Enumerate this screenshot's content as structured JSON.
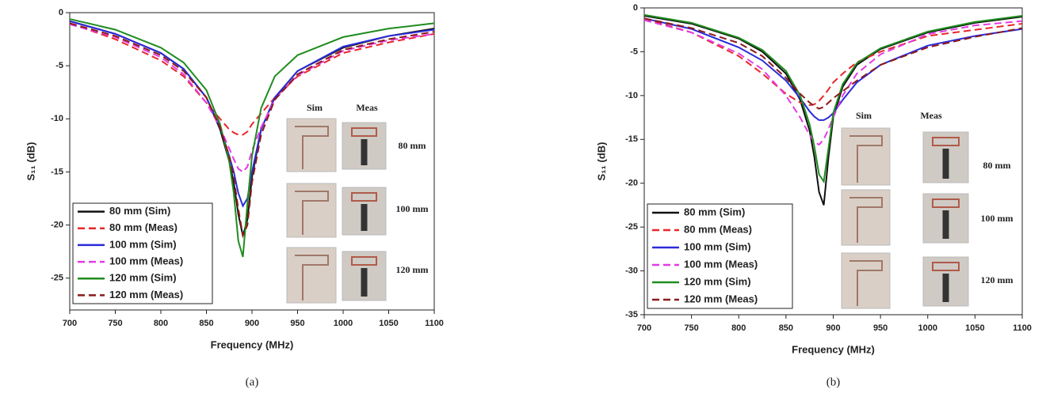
{
  "chart_data": [
    {
      "type": "line",
      "caption": "(a)",
      "xlabel": "Frequency (MHz)",
      "ylabel": "S₁₁ (dB)",
      "xlim": [
        700,
        1100
      ],
      "xticks": [
        700,
        750,
        800,
        850,
        900,
        950,
        1000,
        1050,
        1100
      ],
      "ylim": [
        -28,
        0
      ],
      "yticks": [
        0,
        -5,
        -10,
        -15,
        -20,
        -25
      ],
      "legend": "lower left",
      "x": [
        700,
        750,
        800,
        825,
        850,
        865,
        875,
        880,
        885,
        890,
        895,
        900,
        910,
        925,
        950,
        1000,
        1050,
        1100
      ],
      "series": [
        {
          "name": "80 mm (Sim)",
          "color": "#111111",
          "dash": false,
          "values": [
            -0.8,
            -2,
            -3.8,
            -5.3,
            -8,
            -11,
            -14,
            -16,
            -19,
            -21,
            -19.5,
            -15.5,
            -11,
            -8,
            -5.5,
            -3.3,
            -2.2,
            -1.5
          ]
        },
        {
          "name": "80 mm (Meas)",
          "color": "#e8262a",
          "dash": true,
          "values": [
            -1,
            -2.5,
            -4.5,
            -6,
            -8.5,
            -10,
            -11,
            -11.3,
            -11.5,
            -11.5,
            -11.2,
            -10.5,
            -9.5,
            -8,
            -6,
            -3.8,
            -2.8,
            -2
          ]
        },
        {
          "name": "100 mm (Sim)",
          "color": "#2b2bd9",
          "dash": false,
          "values": [
            -0.8,
            -2,
            -3.8,
            -5.3,
            -8,
            -10.8,
            -13.5,
            -15,
            -17,
            -18.2,
            -17.5,
            -15,
            -11,
            -8,
            -5.5,
            -3.2,
            -2.2,
            -1.6
          ]
        },
        {
          "name": "100 mm (Meas)",
          "color": "#e43be4",
          "dash": true,
          "values": [
            -1.1,
            -2.3,
            -4.2,
            -5.8,
            -8.5,
            -10.8,
            -12.8,
            -13.8,
            -14.7,
            -15,
            -14.5,
            -13,
            -10.8,
            -8.2,
            -5.9,
            -3.6,
            -2.6,
            -2
          ]
        },
        {
          "name": "120 mm (Sim)",
          "color": "#1f8c1f",
          "dash": false,
          "values": [
            -0.6,
            -1.6,
            -3.3,
            -4.7,
            -7.3,
            -10.5,
            -14,
            -17,
            -21.5,
            -23,
            -18,
            -13.5,
            -9,
            -6,
            -4,
            -2.3,
            -1.5,
            -1
          ]
        },
        {
          "name": "120 mm (Meas)",
          "color": "#8b1a1a",
          "dash": true,
          "values": [
            -1,
            -2.2,
            -4,
            -5.5,
            -8,
            -10.8,
            -13.5,
            -15.5,
            -18.5,
            -21,
            -20,
            -16,
            -11.5,
            -8.2,
            -5.8,
            -3.5,
            -2.5,
            -1.8
          ]
        }
      ],
      "inset": {
        "headers": [
          "Sim",
          "Meas"
        ],
        "labels": [
          "80 mm",
          "100 mm",
          "120 mm"
        ]
      }
    },
    {
      "type": "line",
      "caption": "(b)",
      "xlabel": "Frequency (MHz)",
      "ylabel": "S₁₁ (dB)",
      "xlim": [
        700,
        1100
      ],
      "xticks": [
        700,
        750,
        800,
        850,
        900,
        950,
        1000,
        1050,
        1100
      ],
      "ylim": [
        -35,
        0
      ],
      "yticks": [
        0,
        -5,
        -10,
        -15,
        -20,
        -25,
        -30,
        -35
      ],
      "legend": "lower left",
      "x": [
        700,
        750,
        800,
        825,
        850,
        865,
        875,
        880,
        885,
        890,
        895,
        900,
        910,
        925,
        950,
        1000,
        1050,
        1100
      ],
      "series": [
        {
          "name": "80 mm (Sim)",
          "color": "#111111",
          "dash": false,
          "values": [
            -0.9,
            -1.8,
            -3.5,
            -5,
            -7.5,
            -10.5,
            -14,
            -17,
            -21,
            -22.5,
            -17,
            -12.5,
            -9,
            -6.5,
            -4.7,
            -2.8,
            -1.7,
            -1
          ]
        },
        {
          "name": "80 mm (Meas)",
          "color": "#e8262a",
          "dash": true,
          "values": [
            -1.2,
            -2.8,
            -5.5,
            -7.5,
            -9.8,
            -10.8,
            -11.1,
            -11,
            -10.6,
            -10,
            -9.3,
            -8.5,
            -7.5,
            -6.2,
            -5,
            -3.2,
            -2.5,
            -1.8
          ]
        },
        {
          "name": "100 mm (Sim)",
          "color": "#2b2bd9",
          "dash": false,
          "values": [
            -1.2,
            -2.4,
            -4.5,
            -6,
            -8.3,
            -10.3,
            -11.8,
            -12.4,
            -12.8,
            -12.8,
            -12.5,
            -12,
            -10.5,
            -8.5,
            -6.5,
            -4.3,
            -3.2,
            -2.4
          ]
        },
        {
          "name": "100 mm (Meas)",
          "color": "#e43be4",
          "dash": true,
          "values": [
            -1.4,
            -2.8,
            -5.2,
            -7,
            -10,
            -12.5,
            -14.5,
            -15.3,
            -15.6,
            -15,
            -13.8,
            -12.5,
            -10,
            -7.5,
            -5.3,
            -3,
            -2,
            -1.5
          ]
        },
        {
          "name": "120 mm (Sim)",
          "color": "#1f8c1f",
          "dash": false,
          "values": [
            -0.8,
            -1.7,
            -3.4,
            -4.8,
            -7.2,
            -10,
            -13.3,
            -15.8,
            -19,
            -19.8,
            -16,
            -12,
            -8.7,
            -6.3,
            -4.6,
            -2.7,
            -1.6,
            -0.9
          ]
        },
        {
          "name": "120 mm (Meas)",
          "color": "#8b1a1a",
          "dash": true,
          "values": [
            -1.2,
            -2.3,
            -4,
            -5.5,
            -8,
            -9.8,
            -10.8,
            -11.2,
            -11.5,
            -11.3,
            -10.8,
            -10.3,
            -9.5,
            -8.3,
            -6.5,
            -4.5,
            -3.3,
            -2.3
          ]
        }
      ],
      "inset": {
        "headers": [
          "Sim",
          "Meas"
        ],
        "labels": [
          "80 mm",
          "100 mm",
          "120 mm"
        ]
      }
    }
  ]
}
